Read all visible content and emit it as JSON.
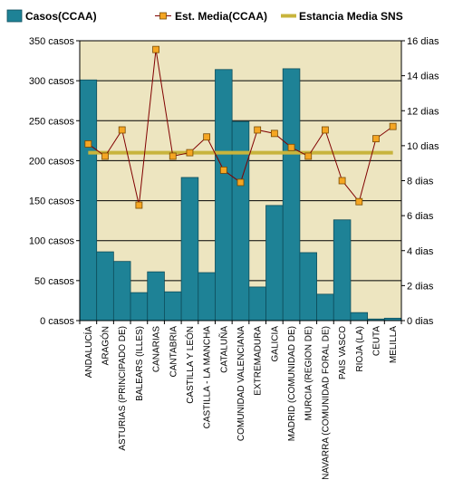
{
  "chart_data": {
    "type": "bar",
    "categories": [
      "ANDALUCÍA",
      "ARAGÓN",
      "ASTURIAS (PRINCIPADO DE)",
      "BALEARS (ILLES)",
      "CANARIAS",
      "CANTABRIA",
      "CASTILLA Y LEÓN",
      "CASTILLA - LA MANCHA",
      "CATALUÑA",
      "COMUNIDAD VALENCIANA",
      "EXTREMADURA",
      "GALICIA",
      "MADRID (COMUNIDAD DE)",
      "MURCIA (REGION DE)",
      "NAVARRA (COMUNIDAD FORAL DE)",
      "PAIS VASCO",
      "RIOJA (LA)",
      "CEUTA",
      "MELILLA"
    ],
    "series": [
      {
        "name": "Casos(CCAA)",
        "type": "bar",
        "axis": "left",
        "color": "#1e8296",
        "values": [
          301,
          86,
          74,
          35,
          61,
          36,
          179,
          60,
          314,
          249,
          42,
          144,
          315,
          85,
          33,
          126,
          10,
          2,
          3
        ]
      },
      {
        "name": "Est. Media(CCAA)",
        "type": "line",
        "axis": "right",
        "color": "#800000",
        "marker_color": "#f5a623",
        "values": [
          10.1,
          9.4,
          10.9,
          6.6,
          15.5,
          9.4,
          9.6,
          10.5,
          8.6,
          7.9,
          10.9,
          10.7,
          9.9,
          9.4,
          10.9,
          8.0,
          6.8,
          10.4,
          11.1
        ]
      },
      {
        "name": "Estancia Media SNS",
        "type": "line",
        "axis": "right",
        "color": "#c8b43c",
        "value": 9.6
      }
    ],
    "y_left": {
      "min": 0,
      "max": 350,
      "step": 50,
      "ticks": [
        "0 casos",
        "50 casos",
        "100 casos",
        "150 casos",
        "200 casos",
        "250 casos",
        "300 casos",
        "350 casos"
      ]
    },
    "y_right": {
      "min": 0,
      "max": 16,
      "step": 2,
      "ticks": [
        "0 dias",
        "2 dias",
        "4 dias",
        "6 dias",
        "8 dias",
        "10 dias",
        "12 dias",
        "14 dias",
        "16 dias"
      ]
    },
    "grid": true,
    "legend": "top",
    "plot_background": "#ede5c0"
  }
}
